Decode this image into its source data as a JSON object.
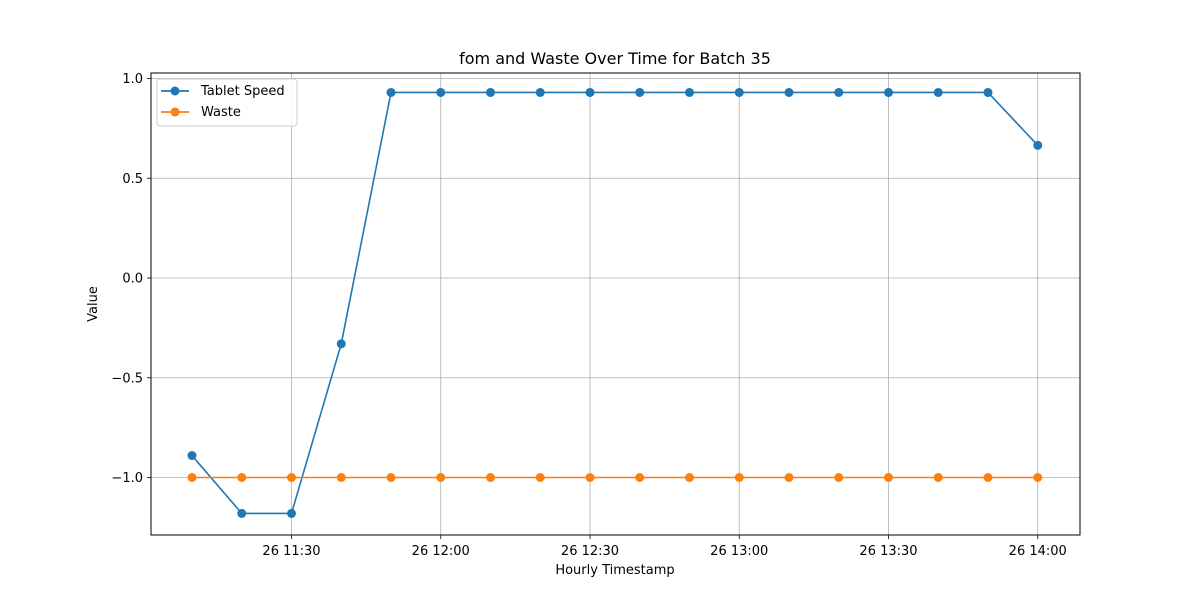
{
  "chart_data": {
    "type": "line",
    "title": "fom and Waste Over Time for Batch 35",
    "xlabel": "Hourly Timestamp",
    "ylabel": "Value",
    "x": [
      "11:10",
      "11:20",
      "11:30",
      "11:40",
      "11:50",
      "12:00",
      "12:10",
      "12:20",
      "12:30",
      "12:40",
      "12:50",
      "13:00",
      "13:10",
      "13:20",
      "13:30",
      "13:40",
      "13:50",
      "14:00"
    ],
    "x_tick_labels": [
      "26 11:30",
      "26 12:00",
      "26 12:30",
      "26 13:00",
      "26 13:30",
      "26 14:00"
    ],
    "y_tick_labels": [
      "1.0",
      "0.5",
      "0.0",
      "−0.5",
      "−1.0"
    ],
    "y_ticks": [
      1.0,
      0.5,
      0.0,
      -0.5,
      -1.0
    ],
    "ylim": [
      -1.28,
      1.03
    ],
    "grid": true,
    "legend_position": "upper-left",
    "series": [
      {
        "name": "Tablet Speed",
        "color": "#1f77b4",
        "values": [
          -0.89,
          -1.18,
          -1.18,
          -0.33,
          0.93,
          0.93,
          0.93,
          0.93,
          0.93,
          0.93,
          0.93,
          0.93,
          0.93,
          0.93,
          0.93,
          0.93,
          0.93,
          0.665
        ]
      },
      {
        "name": "Waste",
        "color": "#ff7f0e",
        "values": [
          -1.0,
          -1.0,
          -1.0,
          -1.0,
          -1.0,
          -1.0,
          -1.0,
          -1.0,
          -1.0,
          -1.0,
          -1.0,
          -1.0,
          -1.0,
          -1.0,
          -1.0,
          -1.0,
          -1.0,
          -1.0
        ]
      }
    ]
  }
}
